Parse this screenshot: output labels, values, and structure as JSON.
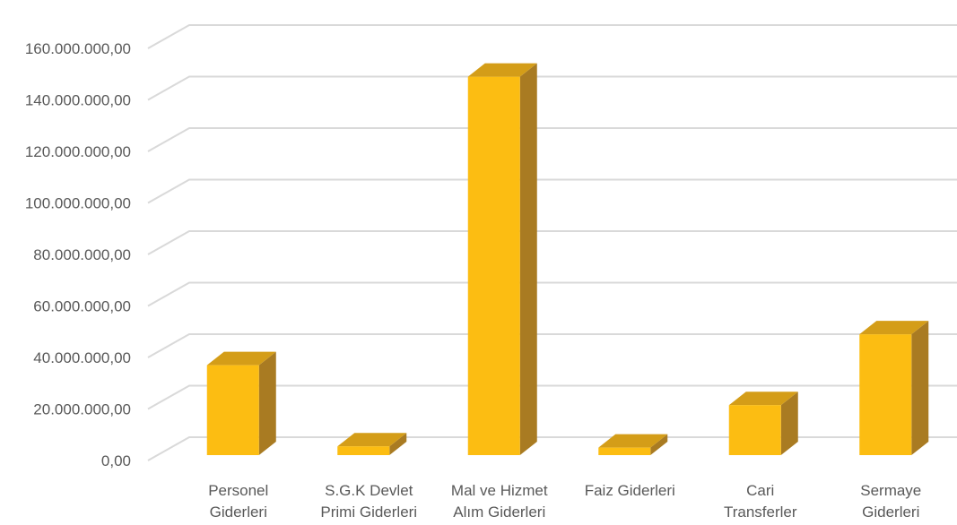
{
  "colors": {
    "bar_front": "#FCBD12",
    "bar_top": "#D49D18",
    "bar_side": "#A97B22",
    "grid": "#D9D9D9",
    "tick_text": "#595959"
  },
  "chart_data": {
    "type": "bar",
    "style": "3d-column",
    "title": "",
    "xlabel": "",
    "ylabel": "",
    "ylim": [
      0,
      160000000
    ],
    "grid": true,
    "legend": "none",
    "y_ticks": [
      "0,00",
      "20.000.000,00",
      "40.000.000,00",
      "60.000.000,00",
      "80.000.000,00",
      "100.000.000,00",
      "120.000.000,00",
      "140.000.000,00",
      "160.000.000,00"
    ],
    "categories": [
      [
        "Personel",
        "Giderleri"
      ],
      [
        "S.G.K Devlet",
        "Primi Giderleri"
      ],
      [
        "Mal ve Hizmet",
        "Alım Giderleri"
      ],
      [
        "Faiz Giderleri"
      ],
      [
        "Cari",
        "Transferler"
      ],
      [
        "Sermaye",
        "Giderleri"
      ]
    ],
    "values": [
      37000000,
      5500000,
      149000000,
      5000000,
      21500000,
      49000000
    ]
  }
}
